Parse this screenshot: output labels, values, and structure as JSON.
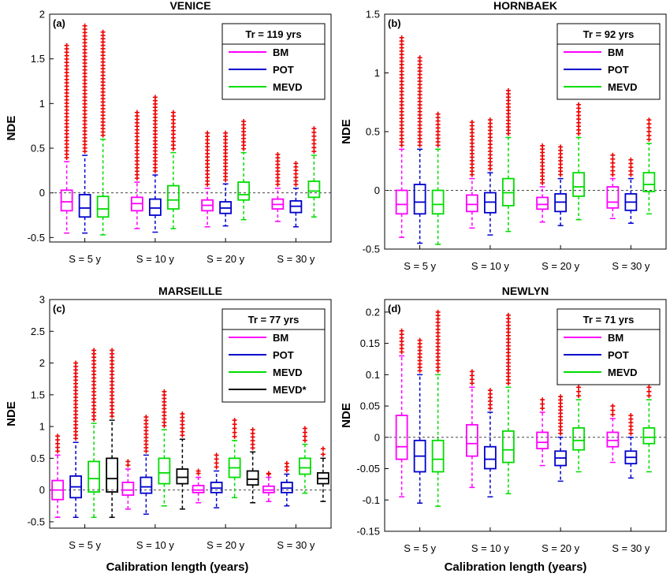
{
  "figure": {
    "xlabel": "Calibration length (years)",
    "ylabel": "NDE",
    "categories": [
      "S = 5 y",
      "S = 10 y",
      "S = 20 y",
      "S = 30 y"
    ]
  },
  "colors": {
    "BM": "#ff00ff",
    "POT": "#0000cc",
    "MEVD": "#00dd00",
    "MEVD*": "#000000",
    "outlier": "#ee0000",
    "zero_line": "#444444"
  },
  "chart_data": [
    {
      "type": "box",
      "panel": "(a)",
      "title": "VENICE",
      "legend_title": "Tr = 119 yrs",
      "ylim": [
        -0.55,
        2.0
      ],
      "yticks": [
        -0.5,
        0,
        0.5,
        1,
        1.5,
        2
      ],
      "categories": [
        "S = 5 y",
        "S = 10 y",
        "S = 20 y",
        "S = 30 y"
      ],
      "series": [
        {
          "name": "BM",
          "boxes": [
            {
              "q1": -0.2,
              "median": -0.1,
              "q3": 0.03,
              "lw": -0.45,
              "uw": 0.35,
              "outliers_max": 1.65
            },
            {
              "q1": -0.2,
              "median": -0.12,
              "q3": -0.05,
              "lw": -0.4,
              "uw": 0.12,
              "outliers_max": 0.9
            },
            {
              "q1": -0.2,
              "median": -0.14,
              "q3": -0.08,
              "lw": -0.38,
              "uw": 0.05,
              "outliers_max": 0.67
            },
            {
              "q1": -0.18,
              "median": -0.13,
              "q3": -0.07,
              "lw": -0.32,
              "uw": 0.05,
              "outliers_max": 0.43
            }
          ]
        },
        {
          "name": "POT",
          "boxes": [
            {
              "q1": -0.27,
              "median": -0.17,
              "q3": -0.02,
              "lw": -0.45,
              "uw": 0.42,
              "outliers_max": 1.87
            },
            {
              "q1": -0.25,
              "median": -0.17,
              "q3": -0.07,
              "lw": -0.44,
              "uw": 0.2,
              "outliers_max": 1.07
            },
            {
              "q1": -0.23,
              "median": -0.17,
              "q3": -0.1,
              "lw": -0.37,
              "uw": 0.1,
              "outliers_max": 0.67
            },
            {
              "q1": -0.22,
              "median": -0.15,
              "q3": -0.09,
              "lw": -0.38,
              "uw": 0.05,
              "outliers_max": 0.33
            }
          ]
        },
        {
          "name": "MEVD",
          "boxes": [
            {
              "q1": -0.27,
              "median": -0.18,
              "q3": -0.04,
              "lw": -0.47,
              "uw": 0.6,
              "outliers_max": 1.8
            },
            {
              "q1": -0.18,
              "median": -0.08,
              "q3": 0.08,
              "lw": -0.4,
              "uw": 0.45,
              "outliers_max": 0.9
            },
            {
              "q1": -0.08,
              "median": -0.02,
              "q3": 0.12,
              "lw": -0.3,
              "uw": 0.45,
              "outliers_max": 0.8
            },
            {
              "q1": -0.05,
              "median": 0.02,
              "q3": 0.13,
              "lw": -0.27,
              "uw": 0.42,
              "outliers_max": 0.72
            }
          ]
        }
      ]
    },
    {
      "type": "box",
      "panel": "(b)",
      "title": "HORNBAEK",
      "legend_title": "Tr = 92 yrs",
      "ylim": [
        -0.5,
        1.5
      ],
      "yticks": [
        -0.5,
        0,
        0.5,
        1,
        1.5
      ],
      "categories": [
        "S = 5 y",
        "S = 10 y",
        "S = 20 y",
        "S = 30 y"
      ],
      "series": [
        {
          "name": "BM",
          "boxes": [
            {
              "q1": -0.2,
              "median": -0.12,
              "q3": 0.0,
              "lw": -0.4,
              "uw": 0.35,
              "outliers_max": 1.3
            },
            {
              "q1": -0.18,
              "median": -0.12,
              "q3": -0.04,
              "lw": -0.32,
              "uw": 0.1,
              "outliers_max": 0.58
            },
            {
              "q1": -0.16,
              "median": -0.12,
              "q3": -0.06,
              "lw": -0.27,
              "uw": 0.03,
              "outliers_max": 0.38
            },
            {
              "q1": -0.15,
              "median": -0.1,
              "q3": 0.03,
              "lw": -0.24,
              "uw": 0.1,
              "outliers_max": 0.3
            }
          ]
        },
        {
          "name": "POT",
          "boxes": [
            {
              "q1": -0.2,
              "median": -0.1,
              "q3": 0.05,
              "lw": -0.45,
              "uw": 0.35,
              "outliers_max": 1.13
            },
            {
              "q1": -0.19,
              "median": -0.1,
              "q3": -0.02,
              "lw": -0.38,
              "uw": 0.15,
              "outliers_max": 0.6
            },
            {
              "q1": -0.18,
              "median": -0.1,
              "q3": -0.03,
              "lw": -0.3,
              "uw": 0.1,
              "outliers_max": 0.37
            },
            {
              "q1": -0.17,
              "median": -0.1,
              "q3": -0.03,
              "lw": -0.28,
              "uw": 0.1,
              "outliers_max": 0.26
            }
          ]
        },
        {
          "name": "MEVD",
          "boxes": [
            {
              "q1": -0.2,
              "median": -0.12,
              "q3": 0.0,
              "lw": -0.46,
              "uw": 0.35,
              "outliers_max": 0.65
            },
            {
              "q1": -0.13,
              "median": -0.02,
              "q3": 0.1,
              "lw": -0.35,
              "uw": 0.45,
              "outliers_max": 0.85
            },
            {
              "q1": -0.05,
              "median": 0.03,
              "q3": 0.15,
              "lw": -0.25,
              "uw": 0.45,
              "outliers_max": 0.73
            },
            {
              "q1": -0.01,
              "median": 0.05,
              "q3": 0.15,
              "lw": -0.2,
              "uw": 0.4,
              "outliers_max": 0.6
            }
          ]
        }
      ]
    },
    {
      "type": "box",
      "panel": "(c)",
      "title": "MARSEILLE",
      "legend_title": "Tr = 77 yrs",
      "ylim": [
        -0.6,
        3.0
      ],
      "yticks": [
        -0.5,
        0,
        0.5,
        1,
        1.5,
        2,
        2.5,
        3
      ],
      "categories": [
        "S = 5 y",
        "S = 10 y",
        "S = 20 y",
        "S = 30 y"
      ],
      "series": [
        {
          "name": "BM",
          "boxes": [
            {
              "q1": -0.15,
              "median": 0.0,
              "q3": 0.15,
              "lw": -0.43,
              "uw": 0.55,
              "outliers_max": 0.85
            },
            {
              "q1": -0.08,
              "median": 0.0,
              "q3": 0.12,
              "lw": -0.3,
              "uw": 0.33,
              "outliers_max": 0.45
            },
            {
              "q1": -0.04,
              "median": 0.0,
              "q3": 0.07,
              "lw": -0.2,
              "uw": 0.2,
              "outliers_max": 0.3
            },
            {
              "q1": -0.04,
              "median": 0.0,
              "q3": 0.06,
              "lw": -0.18,
              "uw": 0.2,
              "outliers_max": 0.25
            }
          ]
        },
        {
          "name": "POT",
          "boxes": [
            {
              "q1": -0.12,
              "median": 0.05,
              "q3": 0.22,
              "lw": -0.43,
              "uw": 0.75,
              "outliers_max": 2.0
            },
            {
              "q1": -0.05,
              "median": 0.05,
              "q3": 0.2,
              "lw": -0.38,
              "uw": 0.55,
              "outliers_max": 1.15
            },
            {
              "q1": -0.04,
              "median": 0.03,
              "q3": 0.12,
              "lw": -0.28,
              "uw": 0.3,
              "outliers_max": 0.55
            },
            {
              "q1": -0.04,
              "median": 0.03,
              "q3": 0.12,
              "lw": -0.25,
              "uw": 0.25,
              "outliers_max": 0.42
            }
          ]
        },
        {
          "name": "MEVD",
          "boxes": [
            {
              "q1": -0.03,
              "median": 0.18,
              "q3": 0.45,
              "lw": -0.43,
              "uw": 1.05,
              "outliers_max": 2.2
            },
            {
              "q1": 0.1,
              "median": 0.27,
              "q3": 0.5,
              "lw": -0.25,
              "uw": 0.95,
              "outliers_max": 1.55
            },
            {
              "q1": 0.2,
              "median": 0.35,
              "q3": 0.5,
              "lw": -0.12,
              "uw": 0.78,
              "outliers_max": 1.1
            },
            {
              "q1": 0.25,
              "median": 0.35,
              "q3": 0.5,
              "lw": -0.05,
              "uw": 0.72,
              "outliers_max": 0.97
            }
          ]
        },
        {
          "name": "MEVD*",
          "boxes": [
            {
              "q1": -0.03,
              "median": 0.18,
              "q3": 0.5,
              "lw": -0.43,
              "uw": 1.1,
              "outliers_max": 2.2
            },
            {
              "q1": 0.1,
              "median": 0.2,
              "q3": 0.33,
              "lw": -0.3,
              "uw": 0.8,
              "outliers_max": 1.2
            },
            {
              "q1": 0.08,
              "median": 0.17,
              "q3": 0.3,
              "lw": -0.2,
              "uw": 0.6,
              "outliers_max": 0.95
            },
            {
              "q1": 0.1,
              "median": 0.18,
              "q3": 0.27,
              "lw": -0.18,
              "uw": 0.5,
              "outliers_max": 0.65
            }
          ]
        }
      ]
    },
    {
      "type": "box",
      "panel": "(d)",
      "title": "NEWLYN",
      "legend_title": "Tr = 71 yrs",
      "ylim": [
        -0.15,
        0.22
      ],
      "yticks": [
        -0.15,
        -0.1,
        -0.05,
        0,
        0.05,
        0.1,
        0.15,
        0.2
      ],
      "categories": [
        "S = 5 y",
        "S = 10 y",
        "S = 20 y",
        "S = 30 y"
      ],
      "series": [
        {
          "name": "BM",
          "boxes": [
            {
              "q1": -0.035,
              "median": -0.015,
              "q3": 0.035,
              "lw": -0.095,
              "uw": 0.13,
              "outliers_max": 0.17
            },
            {
              "q1": -0.03,
              "median": -0.01,
              "q3": 0.02,
              "lw": -0.08,
              "uw": 0.08,
              "outliers_max": 0.105
            },
            {
              "q1": -0.018,
              "median": -0.008,
              "q3": 0.008,
              "lw": -0.045,
              "uw": 0.04,
              "outliers_max": 0.06
            },
            {
              "q1": -0.015,
              "median": -0.005,
              "q3": 0.008,
              "lw": -0.04,
              "uw": 0.03,
              "outliers_max": 0.05
            }
          ]
        },
        {
          "name": "POT",
          "boxes": [
            {
              "q1": -0.055,
              "median": -0.03,
              "q3": -0.005,
              "lw": -0.105,
              "uw": 0.1,
              "outliers_max": 0.155
            },
            {
              "q1": -0.05,
              "median": -0.035,
              "q3": -0.015,
              "lw": -0.095,
              "uw": 0.04,
              "outliers_max": 0.075
            },
            {
              "q1": -0.045,
              "median": -0.033,
              "q3": -0.022,
              "lw": -0.07,
              "uw": 0.0,
              "outliers_max": 0.065
            },
            {
              "q1": -0.042,
              "median": -0.032,
              "q3": -0.022,
              "lw": -0.065,
              "uw": 0.0,
              "outliers_max": 0.035
            }
          ]
        },
        {
          "name": "MEVD",
          "boxes": [
            {
              "q1": -0.055,
              "median": -0.035,
              "q3": -0.005,
              "lw": -0.11,
              "uw": 0.1,
              "outliers_max": 0.2
            },
            {
              "q1": -0.04,
              "median": -0.02,
              "q3": 0.01,
              "lw": -0.09,
              "uw": 0.08,
              "outliers_max": 0.195
            },
            {
              "q1": -0.02,
              "median": -0.005,
              "q3": 0.015,
              "lw": -0.055,
              "uw": 0.06,
              "outliers_max": 0.08
            },
            {
              "q1": -0.01,
              "median": 0.0,
              "q3": 0.015,
              "lw": -0.055,
              "uw": 0.06,
              "outliers_max": 0.08
            }
          ]
        }
      ]
    }
  ]
}
